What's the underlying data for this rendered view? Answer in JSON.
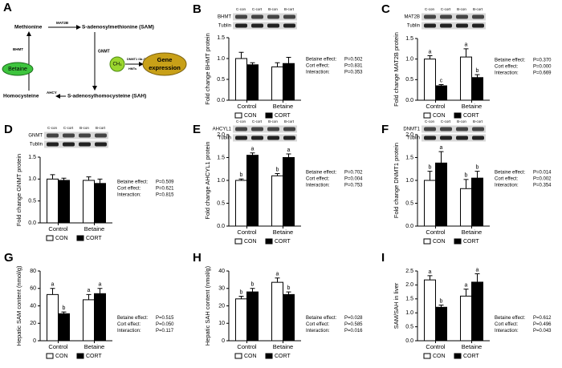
{
  "diagram": {
    "panel": "A",
    "methionine": "Methionine",
    "sam": "S-adenosylmethionine (SAM)",
    "sah": "S-adenosylhomocysteine (SAH)",
    "homocysteine": "Homocysteine",
    "betaine": "Betaine",
    "mat2b": "MAT2B",
    "gnmt": "GNMT",
    "ahcy": "AHCY",
    "bhmt": "BHMT",
    "ch3": "CH₃",
    "dnmt": "DNMT1 /3a /3b",
    "hmts": "HMTs",
    "gene": "Gene",
    "expression": "expression"
  },
  "chart_data": [
    {
      "type": "bar",
      "panel": "B",
      "ylabel": "Fold change BHMT protein",
      "blot": {
        "lanes": [
          "C-con",
          "C-cort",
          "B-con",
          "B-cort"
        ],
        "rows": [
          "BHMT",
          "Tublin"
        ]
      },
      "categories": [
        "Control",
        "Betaine"
      ],
      "series": [
        {
          "name": "CON",
          "color": "#ffffff",
          "values": [
            1.0,
            0.8
          ],
          "errors": [
            0.15,
            0.1
          ]
        },
        {
          "name": "CORT",
          "color": "#000000",
          "values": [
            0.85,
            0.88
          ],
          "errors": [
            0.05,
            0.15
          ]
        }
      ],
      "ylim": [
        0,
        1.5
      ],
      "yticks": [
        {
          "value": 0,
          "label": "0.0"
        },
        {
          "value": 0.5,
          "label": "0.5"
        },
        {
          "value": 1,
          "label": "1.0"
        },
        {
          "value": 1.5,
          "label": "1.5"
        }
      ],
      "stats": [
        {
          "label": "Betaine effect:",
          "value": "P=0.502"
        },
        {
          "label": "Cort effect:",
          "value": "P=0.831"
        },
        {
          "label": "Interaction:",
          "value": "P=0.353"
        }
      ]
    },
    {
      "type": "bar",
      "panel": "C",
      "ylabel": "Fold change MAT2B protein",
      "blot": {
        "lanes": [
          "C-con",
          "C-cort",
          "B-con",
          "B-cort"
        ],
        "rows": [
          "MAT2B",
          "Tublin"
        ]
      },
      "categories": [
        "Control",
        "Betaine"
      ],
      "series": [
        {
          "name": "CON",
          "color": "#ffffff",
          "values": [
            1.0,
            1.05
          ],
          "errors": [
            0.08,
            0.2
          ],
          "letters": [
            "a",
            "a"
          ]
        },
        {
          "name": "CORT",
          "color": "#000000",
          "values": [
            0.35,
            0.55
          ],
          "errors": [
            0.03,
            0.07
          ],
          "letters": [
            "c",
            "b"
          ]
        }
      ],
      "ylim": [
        0,
        1.5
      ],
      "yticks": [
        {
          "value": 0,
          "label": "0.0"
        },
        {
          "value": 0.5,
          "label": "0.5"
        },
        {
          "value": 1,
          "label": "1.0"
        },
        {
          "value": 1.5,
          "label": "1.5"
        }
      ],
      "stats": [
        {
          "label": "Betaine effect:",
          "value": "P=0.370"
        },
        {
          "label": "Cort effect:",
          "value": "P=0.000"
        },
        {
          "label": "Interaction:",
          "value": "P=0.669"
        }
      ]
    },
    {
      "type": "bar",
      "panel": "D",
      "ylabel": "Fold change GNMT  protein",
      "blot": {
        "lanes": [
          "C-con",
          "C-cort",
          "B-con",
          "B-cort"
        ],
        "rows": [
          "GNMT",
          "Tublin"
        ]
      },
      "categories": [
        "Control",
        "Betaine"
      ],
      "series": [
        {
          "name": "CON",
          "color": "#ffffff",
          "values": [
            1.0,
            0.97
          ],
          "errors": [
            0.1,
            0.08
          ]
        },
        {
          "name": "CORT",
          "color": "#000000",
          "values": [
            0.97,
            0.9
          ],
          "errors": [
            0.05,
            0.1
          ]
        }
      ],
      "ylim": [
        0,
        1.5
      ],
      "yticks": [
        {
          "value": 0,
          "label": "0.0"
        },
        {
          "value": 0.5,
          "label": "0.5"
        },
        {
          "value": 1,
          "label": "1.0"
        },
        {
          "value": 1.5,
          "label": "1.5"
        }
      ],
      "stats": [
        {
          "label": "Betaine effect:",
          "value": "P=0.509"
        },
        {
          "label": "Cort effect:",
          "value": "P=0.621"
        },
        {
          "label": "Interaction:",
          "value": "P=0.815"
        }
      ]
    },
    {
      "type": "bar",
      "panel": "E",
      "ylabel": "Fold change AHCYL1 protein",
      "blot": {
        "lanes": [
          "C-con",
          "C-cort",
          "B-con",
          "B-cort"
        ],
        "rows": [
          "AHCYL1",
          "Tublin"
        ]
      },
      "categories": [
        "Control",
        "Betaine"
      ],
      "series": [
        {
          "name": "CON",
          "color": "#ffffff",
          "values": [
            1.0,
            1.1
          ],
          "errors": [
            0.03,
            0.05
          ],
          "letters": [
            "b",
            "b"
          ]
        },
        {
          "name": "CORT",
          "color": "#000000",
          "values": [
            1.55,
            1.5
          ],
          "errors": [
            0.05,
            0.08
          ],
          "letters": [
            "a",
            "a"
          ]
        }
      ],
      "ylim": [
        0,
        2
      ],
      "yticks": [
        {
          "value": 0,
          "label": "0.0"
        },
        {
          "value": 0.5,
          "label": "0.5"
        },
        {
          "value": 1,
          "label": "1.0"
        },
        {
          "value": 1.5,
          "label": "1.5"
        },
        {
          "value": 2,
          "label": "2.0"
        }
      ],
      "stats": [
        {
          "label": "Betaine effect:",
          "value": "P=0.702"
        },
        {
          "label": "Cort effect:",
          "value": "P=0.004"
        },
        {
          "label": "Interaction:",
          "value": "P=0.753"
        }
      ]
    },
    {
      "type": "bar",
      "panel": "F",
      "ylabel": "Fold change DNMT1 protein",
      "blot": {
        "lanes": [
          "C-con",
          "C-cort",
          "B-con",
          "B-cort"
        ],
        "rows": [
          "DNMT1",
          "Tublin"
        ]
      },
      "categories": [
        "Control",
        "Betaine"
      ],
      "series": [
        {
          "name": "CON",
          "color": "#ffffff",
          "values": [
            1.0,
            0.82
          ],
          "errors": [
            0.2,
            0.2
          ],
          "letters": [
            "b",
            "b"
          ]
        },
        {
          "name": "CORT",
          "color": "#000000",
          "values": [
            1.38,
            1.05
          ],
          "errors": [
            0.25,
            0.15
          ],
          "letters": [
            "a",
            "b"
          ]
        }
      ],
      "ylim": [
        0,
        2
      ],
      "yticks": [
        {
          "value": 0,
          "label": "0.0"
        },
        {
          "value": 0.5,
          "label": "0.5"
        },
        {
          "value": 1,
          "label": "1.0"
        },
        {
          "value": 1.5,
          "label": "1.5"
        },
        {
          "value": 2,
          "label": "2.0"
        }
      ],
      "stats": [
        {
          "label": "Betaine effect:",
          "value": "P=0.014"
        },
        {
          "label": "Cort effect:",
          "value": "P=0.002"
        },
        {
          "label": "Interaction:",
          "value": "P=0.354"
        }
      ]
    },
    {
      "type": "bar",
      "panel": "G",
      "ylabel": "Hepatic SAM content (nmol/g)",
      "categories": [
        "Control",
        "Betaine"
      ],
      "series": [
        {
          "name": "CON",
          "color": "#ffffff",
          "values": [
            53,
            47
          ],
          "errors": [
            7,
            6
          ],
          "letters": [
            "a",
            "a"
          ]
        },
        {
          "name": "CORT",
          "color": "#000000",
          "values": [
            31,
            54
          ],
          "errors": [
            2,
            6
          ],
          "letters": [
            "b",
            "a"
          ]
        }
      ],
      "ylim": [
        0,
        80
      ],
      "yticks": [
        0,
        20,
        40,
        60,
        80
      ],
      "stats": [
        {
          "label": "Betaine effect:",
          "value": "P=0.515"
        },
        {
          "label": "Cort effect:",
          "value": "P=0.050"
        },
        {
          "label": "Interaction:",
          "value": "P=0.117"
        }
      ]
    },
    {
      "type": "bar",
      "panel": "H",
      "ylabel": "Hepatic SAH content (nmol/g)",
      "categories": [
        "Control",
        "Betaine"
      ],
      "series": [
        {
          "name": "CON",
          "color": "#ffffff",
          "values": [
            24,
            33.5
          ],
          "errors": [
            1.5,
            2.5
          ],
          "letters": [
            "b",
            "a"
          ]
        },
        {
          "name": "CORT",
          "color": "#000000",
          "values": [
            28,
            26.5
          ],
          "errors": [
            2,
            1.5
          ],
          "letters": [
            "b",
            "b"
          ]
        }
      ],
      "ylim": [
        0,
        40
      ],
      "yticks": [
        0,
        10,
        20,
        30,
        40
      ],
      "stats": [
        {
          "label": "Betaine effect:",
          "value": "P=0.028"
        },
        {
          "label": "Cort effect:",
          "value": "P=0.585"
        },
        {
          "label": "Interaction:",
          "value": "P=0.016"
        }
      ]
    },
    {
      "type": "bar",
      "panel": "I",
      "ylabel": "SAM/SAH in liver",
      "categories": [
        "Control",
        "Betaine"
      ],
      "series": [
        {
          "name": "CON",
          "color": "#ffffff",
          "values": [
            2.18,
            1.6
          ],
          "errors": [
            0.15,
            0.25
          ],
          "letters": [
            "a",
            "a"
          ]
        },
        {
          "name": "CORT",
          "color": "#000000",
          "values": [
            1.2,
            2.1
          ],
          "errors": [
            0.08,
            0.3
          ],
          "letters": [
            "b",
            "a"
          ]
        }
      ],
      "ylim": [
        0,
        2.5
      ],
      "yticks": [
        {
          "value": 0,
          "label": "0.0"
        },
        {
          "value": 0.5,
          "label": "0.5"
        },
        {
          "value": 1,
          "label": "1.0"
        },
        {
          "value": 1.5,
          "label": "1.5"
        },
        {
          "value": 2,
          "label": "2.0"
        },
        {
          "value": 2.5,
          "label": "2.5"
        }
      ],
      "stats": [
        {
          "label": "Betaine effect:",
          "value": "P=0.612"
        },
        {
          "label": "Cort effect:",
          "value": "P=0.496"
        },
        {
          "label": "Interaction:",
          "value": "P=0.043"
        }
      ]
    }
  ]
}
